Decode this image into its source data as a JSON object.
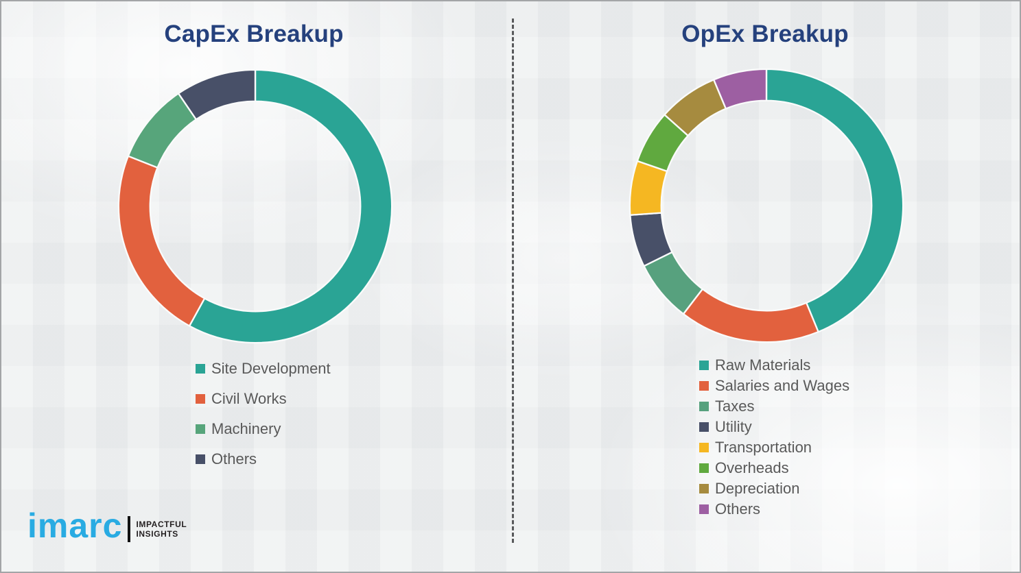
{
  "theme": {
    "background": "#edeff0",
    "border_color": "#a3a5a7",
    "title_color": "#25417d",
    "legend_text_color": "#595959",
    "divider_color": "#58595b",
    "segment_gap_color": "#fafbfb"
  },
  "chart_data": [
    {
      "type": "pie",
      "donut": true,
      "title": "CapEx Breakup",
      "categories": [
        "Site Development",
        "Civil Works",
        "Machinery",
        "Others"
      ],
      "values": [
        58,
        23,
        9.5,
        9.5
      ],
      "colors": [
        "#2aa495",
        "#e2613e",
        "#57a57b",
        "#485068"
      ],
      "legend_position": "bottom-left",
      "start_angle_deg": 0,
      "direction": "clockwise"
    },
    {
      "type": "pie",
      "donut": true,
      "title": "OpEx Breakup",
      "categories": [
        "Raw Materials",
        "Salaries and Wages",
        "Taxes",
        "Utility",
        "Transportation",
        "Overheads",
        "Depreciation",
        "Others"
      ],
      "values": [
        43.8,
        16.6,
        7.3,
        6.2,
        6.4,
        6.3,
        7.1,
        6.3
      ],
      "colors": [
        "#2aa495",
        "#e2613e",
        "#57a17e",
        "#485068",
        "#f5b722",
        "#60a93f",
        "#a68b3f",
        "#9d5fa2"
      ],
      "legend_position": "bottom-left",
      "start_angle_deg": 0,
      "direction": "clockwise"
    }
  ],
  "logo": {
    "brand": "imarc",
    "brand_color": "#29abe2",
    "tagline_line1": "IMPACTFUL",
    "tagline_line2": "INSIGHTS",
    "tagline_color": "#231f20"
  }
}
